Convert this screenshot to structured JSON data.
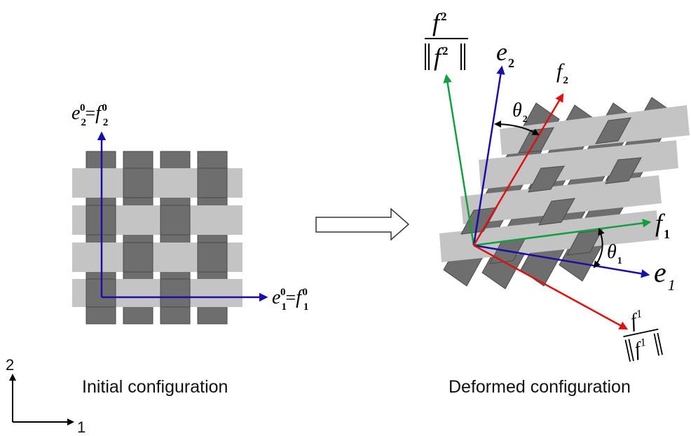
{
  "captions": {
    "initial": "Initial configuration",
    "deformed": "Deformed configuration"
  },
  "axes_indicator": {
    "vertical": "2",
    "horizontal": "1"
  },
  "labels": {
    "initial_vertical": {
      "left_base": "e",
      "left_sub": "2",
      "left_sup": "0",
      "eq": "=",
      "right_base": "f",
      "right_sub": "2",
      "right_sup": "0"
    },
    "initial_horizontal": {
      "left_base": "e",
      "left_sub": "1",
      "left_sup": "0",
      "eq": "=",
      "right_base": "f",
      "right_sub": "1",
      "right_sup": "0"
    },
    "f_norm_top": {
      "num_base": "f",
      "num_sup": "2",
      "den_base": "f",
      "den_sup": "2"
    },
    "f_norm_bottom": {
      "num_base": "f",
      "num_sup": "1",
      "den_base": "f",
      "den_sup": "1"
    },
    "e2": {
      "base": "e",
      "sub": "2"
    },
    "f2": {
      "base": "f",
      "sub": "2"
    },
    "theta2": {
      "base": "θ",
      "sub": "2"
    },
    "f1": {
      "base": "f",
      "sub": "1"
    },
    "theta1": {
      "base": "θ",
      "sub": "1"
    },
    "e1": {
      "base": "e",
      "sub": "1"
    }
  },
  "colors": {
    "blue_vector": "#1a0ea8",
    "red_vector": "#e01010",
    "green_vector": "#10a040",
    "warp_yarn": "#6e6e6e",
    "weft_yarn": "#c4c4c4"
  }
}
